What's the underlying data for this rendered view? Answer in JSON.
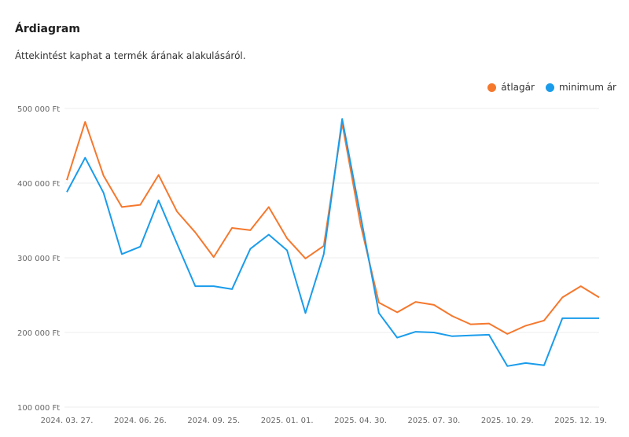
{
  "header": {
    "title": "Árdiagram",
    "subtitle": "Áttekintést kaphat a termék árának alakulásáról."
  },
  "legend": [
    {
      "label": "átlagár",
      "color": "#f5782d"
    },
    {
      "label": "minimum ár",
      "color": "#1a9ceb"
    }
  ],
  "chart_data": {
    "type": "line",
    "title": "Árdiagram",
    "ylim": [
      100000,
      500000
    ],
    "yticks": [
      {
        "value": 100000,
        "label": "100 000 Ft"
      },
      {
        "value": 200000,
        "label": "200 000 Ft"
      },
      {
        "value": 300000,
        "label": "300 000 Ft"
      },
      {
        "value": 400000,
        "label": "400 000 Ft"
      },
      {
        "value": 500000,
        "label": "500 000 Ft"
      }
    ],
    "xtick_labels": [
      {
        "index": 0,
        "label": "2024. 03. 27."
      },
      {
        "index": 4,
        "label": "2024. 06. 26."
      },
      {
        "index": 8,
        "label": "2024. 09. 25."
      },
      {
        "index": 12,
        "label": "2025. 01. 01."
      },
      {
        "index": 16,
        "label": "2025. 04. 30."
      },
      {
        "index": 20,
        "label": "2025. 07. 30."
      },
      {
        "index": 24,
        "label": "2025. 10. 29."
      },
      {
        "index": 28,
        "label": "2025. 12. 19."
      }
    ],
    "grid": true,
    "legend_position": "top-right",
    "series": [
      {
        "name": "átlagár",
        "color": "#f5782d",
        "values": [
          404000,
          482000,
          410000,
          368000,
          371000,
          411000,
          362000,
          334000,
          301000,
          340000,
          337000,
          368000,
          326000,
          299000,
          316000,
          480000,
          345000,
          240000,
          227000,
          241000,
          237000,
          222000,
          211000,
          212000,
          198000,
          209000,
          216000,
          247000,
          262000,
          247000
        ]
      },
      {
        "name": "minimum ár",
        "color": "#1a9ceb",
        "values": [
          388000,
          434000,
          387000,
          305000,
          315000,
          377000,
          319000,
          262000,
          262000,
          258000,
          312000,
          331000,
          310000,
          226000,
          305000,
          486000,
          357000,
          226000,
          193000,
          201000,
          200000,
          195000,
          196000,
          197000,
          155000,
          159000,
          156000,
          219000,
          219000,
          219000
        ]
      }
    ]
  }
}
